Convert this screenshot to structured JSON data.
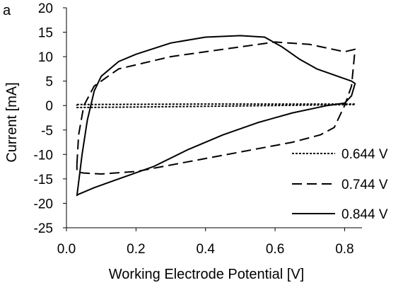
{
  "chart_data": {
    "type": "line",
    "panel_label": "a",
    "title": "",
    "xlabel": "Working Electrode Potential [V]",
    "ylabel": "Current [mA]",
    "xlim": [
      0,
      0.85
    ],
    "ylim": [
      -25,
      20
    ],
    "xticks": [
      0,
      0.2,
      0.4,
      0.6,
      0.8
    ],
    "xtick_labels": [
      "0.0",
      "0.2",
      "0.4",
      "0.6",
      "0.8"
    ],
    "yticks": [
      -25,
      -20,
      -15,
      -10,
      -5,
      0,
      5,
      10,
      15,
      20
    ],
    "ytick_labels": [
      "-25",
      "-20",
      "-15",
      "-10",
      "-5",
      "0",
      "5",
      "10",
      "15",
      "20"
    ],
    "grid": false,
    "legend_position": "bottom-right",
    "series": [
      {
        "name": "0.644 V",
        "style": "dotted",
        "x": [
          0.03,
          0.2,
          0.4,
          0.6,
          0.83,
          0.83,
          0.6,
          0.4,
          0.2,
          0.03,
          0.03
        ],
        "y": [
          0.2,
          0.25,
          0.3,
          0.3,
          0.3,
          0.2,
          0.0,
          -0.15,
          -0.3,
          -0.4,
          0.2
        ]
      },
      {
        "name": "0.744 V",
        "style": "dashed",
        "x": [
          0.03,
          0.035,
          0.05,
          0.08,
          0.15,
          0.3,
          0.45,
          0.6,
          0.7,
          0.8,
          0.83,
          0.82,
          0.8,
          0.77,
          0.73,
          0.65,
          0.5,
          0.35,
          0.2,
          0.1,
          0.05,
          0.03,
          0.03
        ],
        "y": [
          -12,
          -6,
          0,
          4,
          7.5,
          10,
          11.5,
          13,
          12.5,
          11,
          11.5,
          4,
          0,
          -4.5,
          -6,
          -7.5,
          -9.5,
          -11.5,
          -13.5,
          -14,
          -13.8,
          -13.6,
          -12
        ]
      },
      {
        "name": "0.844 V",
        "style": "solid",
        "x": [
          0.03,
          0.045,
          0.06,
          0.08,
          0.1,
          0.15,
          0.2,
          0.3,
          0.4,
          0.5,
          0.57,
          0.62,
          0.67,
          0.72,
          0.78,
          0.82,
          0.83,
          0.82,
          0.8,
          0.75,
          0.65,
          0.55,
          0.45,
          0.35,
          0.25,
          0.15,
          0.08,
          0.04,
          0.03,
          0.03
        ],
        "y": [
          -18.5,
          -10,
          -3,
          3,
          6,
          9,
          10.5,
          12.8,
          14,
          14.3,
          14,
          12,
          9.5,
          7.5,
          6,
          5,
          4.5,
          2,
          0.5,
          0,
          -1.5,
          -3.5,
          -6,
          -9,
          -12.5,
          -15,
          -16.8,
          -18,
          -18.3,
          -18.5
        ]
      }
    ]
  }
}
